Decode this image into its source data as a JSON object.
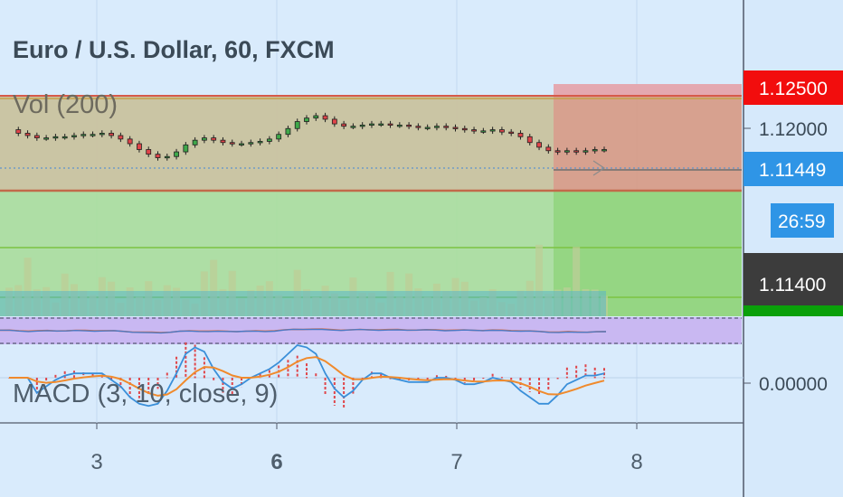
{
  "chart_data": {
    "type": "candlestick",
    "title": "Euro / U.S. Dollar, 60, FXCM",
    "indicators": [
      {
        "name": "Vol",
        "label": "Vol (200)"
      },
      {
        "name": "MACD",
        "label": "MACD (3, 10, close, 9)"
      },
      {
        "name": "RSI",
        "label": ""
      }
    ],
    "x_ticks": [
      {
        "label": "3",
        "bold": false
      },
      {
        "label": "6",
        "bold": true
      },
      {
        "label": "7",
        "bold": false
      },
      {
        "label": "8",
        "bold": false
      }
    ],
    "price_ticks": [
      "1.12000"
    ],
    "price_range": [
      1.1134,
      1.1258
    ],
    "badges": {
      "stop_price": "1.12500",
      "current_price": "1.11449",
      "countdown": "26:59",
      "target_price": "1.11400"
    },
    "macd_zero": "0.00000",
    "levels": {
      "upper": 1.124,
      "lower": 1.1134,
      "entry": 1.11449
    },
    "position": {
      "type": "short",
      "entry": 1.11449,
      "stop": 1.125,
      "target": 1.114,
      "profit_color": "#8fd67f",
      "loss_color": "#e9a0a0"
    },
    "price_path": [
      1.1201,
      1.1198,
      1.1196,
      1.1194,
      1.1194,
      1.1195,
      1.1195,
      1.1196,
      1.1197,
      1.1197,
      1.1198,
      1.1196,
      1.1193,
      1.1189,
      1.1184,
      1.118,
      1.1177,
      1.1178,
      1.1182,
      1.1188,
      1.1192,
      1.1194,
      1.1192,
      1.119,
      1.1189,
      1.1189,
      1.119,
      1.1191,
      1.1193,
      1.1197,
      1.1202,
      1.1208,
      1.1211,
      1.1213,
      1.121,
      1.1206,
      1.1204,
      1.1204,
      1.1205,
      1.1206,
      1.1206,
      1.1205,
      1.1205,
      1.1204,
      1.1203,
      1.1203,
      1.1204,
      1.1203,
      1.1202,
      1.1201,
      1.12,
      1.12,
      1.1201,
      1.1199,
      1.1198,
      1.1195,
      1.119,
      1.1186,
      1.1183,
      1.1182,
      1.1183,
      1.1182,
      1.1183,
      1.1184,
      1.1184
    ],
    "colors": {
      "up": "#3fa84a",
      "down": "#e0454a",
      "macd_line": "#3a8fd9",
      "signal_line": "#f08a2c",
      "rsi_band": "#c9b8f2"
    }
  }
}
